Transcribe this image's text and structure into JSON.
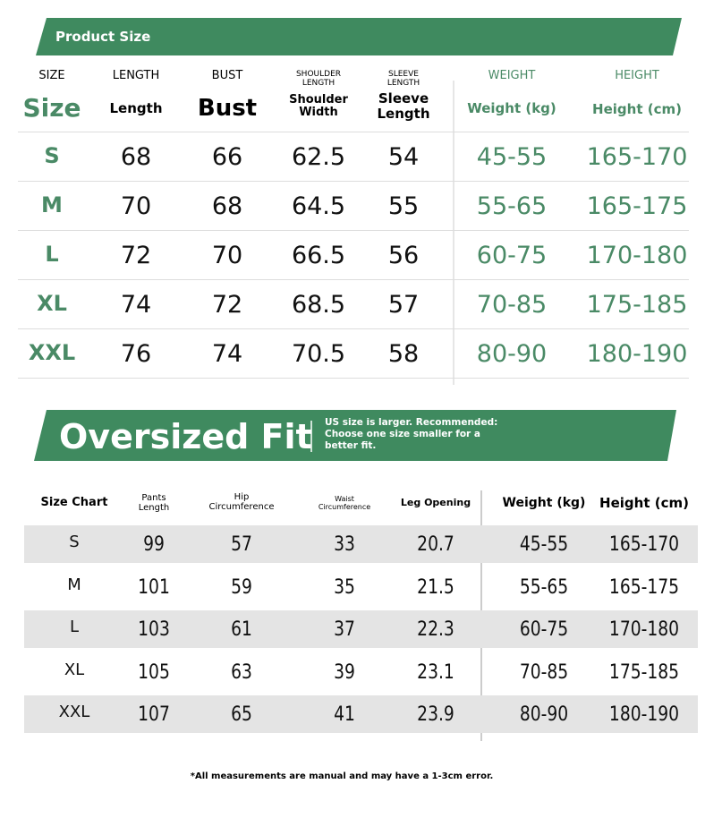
{
  "top_banner": "Product Size",
  "top_table": {
    "headers": [
      {
        "small": "SIZE",
        "large": "Size"
      },
      {
        "small": "LENGTH",
        "large": "Length"
      },
      {
        "small": "BUST",
        "large": "Bust"
      },
      {
        "small": "SHOULDER LENGTH",
        "large": "Shoulder Width"
      },
      {
        "small": "SLEEVE LENGTH",
        "large": "Sleeve Length"
      },
      {
        "small": "WEIGHT",
        "large": "Weight (kg)"
      },
      {
        "small": "HEIGHT",
        "large": "Height (cm)"
      }
    ],
    "rows": [
      [
        "S",
        "68",
        "66",
        "62.5",
        "54",
        "45-55",
        "165-170"
      ],
      [
        "M",
        "70",
        "68",
        "64.5",
        "55",
        "55-65",
        "165-175"
      ],
      [
        "L",
        "72",
        "70",
        "66.5",
        "56",
        "60-75",
        "170-180"
      ],
      [
        "XL",
        "74",
        "72",
        "68.5",
        "57",
        "70-85",
        "175-185"
      ],
      [
        "XXL",
        "76",
        "74",
        "70.5",
        "58",
        "80-90",
        "180-190"
      ]
    ]
  },
  "fit_banner": {
    "title": "Oversized Fit",
    "note": "US size is larger. Recommended: Choose one size smaller for a better fit."
  },
  "bottom_table": {
    "headers": [
      "Size Chart",
      "Pants Length",
      "Hip Circumference",
      "Waist Circumference",
      "Leg Opening",
      "Weight (kg)",
      "Height (cm)"
    ],
    "rows": [
      [
        "S",
        "99",
        "57",
        "33",
        "20.7",
        "45-55",
        "165-170"
      ],
      [
        "M",
        "101",
        "59",
        "35",
        "21.5",
        "55-65",
        "165-175"
      ],
      [
        "L",
        "103",
        "61",
        "37",
        "22.3",
        "60-75",
        "170-180"
      ],
      [
        "XL",
        "105",
        "63",
        "39",
        "23.1",
        "70-85",
        "175-185"
      ],
      [
        "XXL",
        "107",
        "65",
        "41",
        "23.9",
        "80-90",
        "180-190"
      ]
    ]
  },
  "footnote": "*All measurements are manual and may have a 1-3cm error."
}
